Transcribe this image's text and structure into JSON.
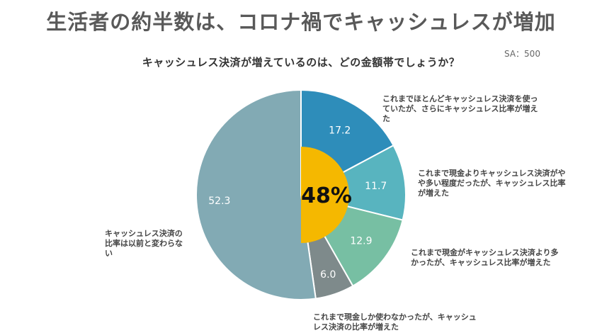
{
  "page": {
    "title": "生活者の約半数は、コロナ禍でキャッシュレスが増加",
    "subtitle": "キャッシュレス決済が増えているのは、どの金額帯でしょうか？",
    "sample_size": "SA：500"
  },
  "chart_data": {
    "type": "pie",
    "center_label": "48%",
    "slices": [
      {
        "label": "これまでほとんどキャッシュレス決済を使っていたが、さらにキャッシュレス比率が増えた",
        "value": 17.2,
        "value_label": "17.2",
        "color": "#2e8dba"
      },
      {
        "label": "これまで現金よりキャッシュレス決済がやや多い程度だったが、キャッシュレス比率が増えた",
        "value": 11.7,
        "value_label": "11.7",
        "color": "#58b4bf"
      },
      {
        "label": "これまで現金がキャッシュレス決済より多かったが、キャッシュレス比率が増えた",
        "value": 12.9,
        "value_label": "12.9",
        "color": "#77bfa3"
      },
      {
        "label": "これまで現金しか使わなかったが、キャッシュレス決済の比率が増えた",
        "value": 6.0,
        "value_label": "6.0",
        "color": "#7e8a8b"
      },
      {
        "label": "キャッシュレス決済の比率は以前と変わらない",
        "value": 52.3,
        "value_label": "52.3",
        "color": "#82aab4"
      }
    ],
    "highlight_color": "#f5b800"
  }
}
